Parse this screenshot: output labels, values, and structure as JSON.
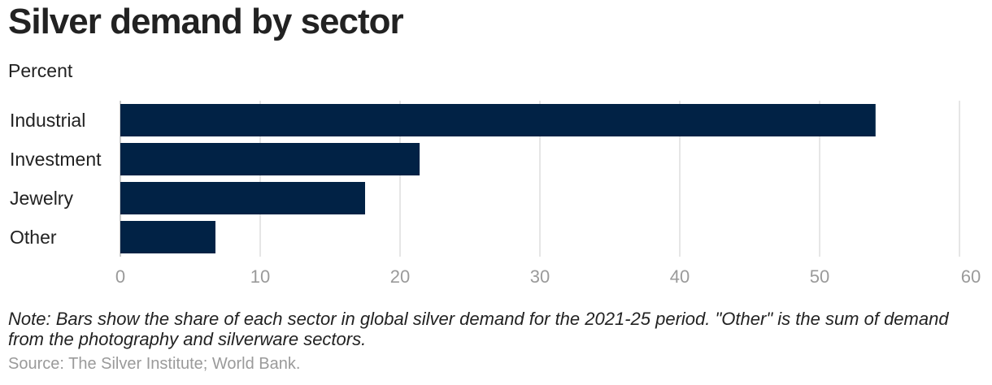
{
  "header": {
    "title": "Silver demand by sector",
    "subtitle": "Percent"
  },
  "footer": {
    "note": "Note: Bars show the share of each sector in global silver demand for the 2021-25 period. \"Other\" is the sum of demand from the photography and silverware sectors.",
    "source": "Source: The Silver Institute; World Bank."
  },
  "colors": {
    "bar": "#012245",
    "grid": "#dddddd",
    "tick_text": "#9a9a9a",
    "label_text": "#222222"
  },
  "chart_data": {
    "type": "bar",
    "orientation": "horizontal",
    "title": "Silver demand by sector",
    "ylabel": "Percent",
    "categories": [
      "Industrial",
      "Investment",
      "Jewelry",
      "Other"
    ],
    "values": [
      54,
      21.4,
      17.5,
      6.8
    ],
    "xlim": [
      0,
      60
    ],
    "xticks": [
      0,
      10,
      20,
      30,
      40,
      50,
      60
    ],
    "grid": true
  }
}
